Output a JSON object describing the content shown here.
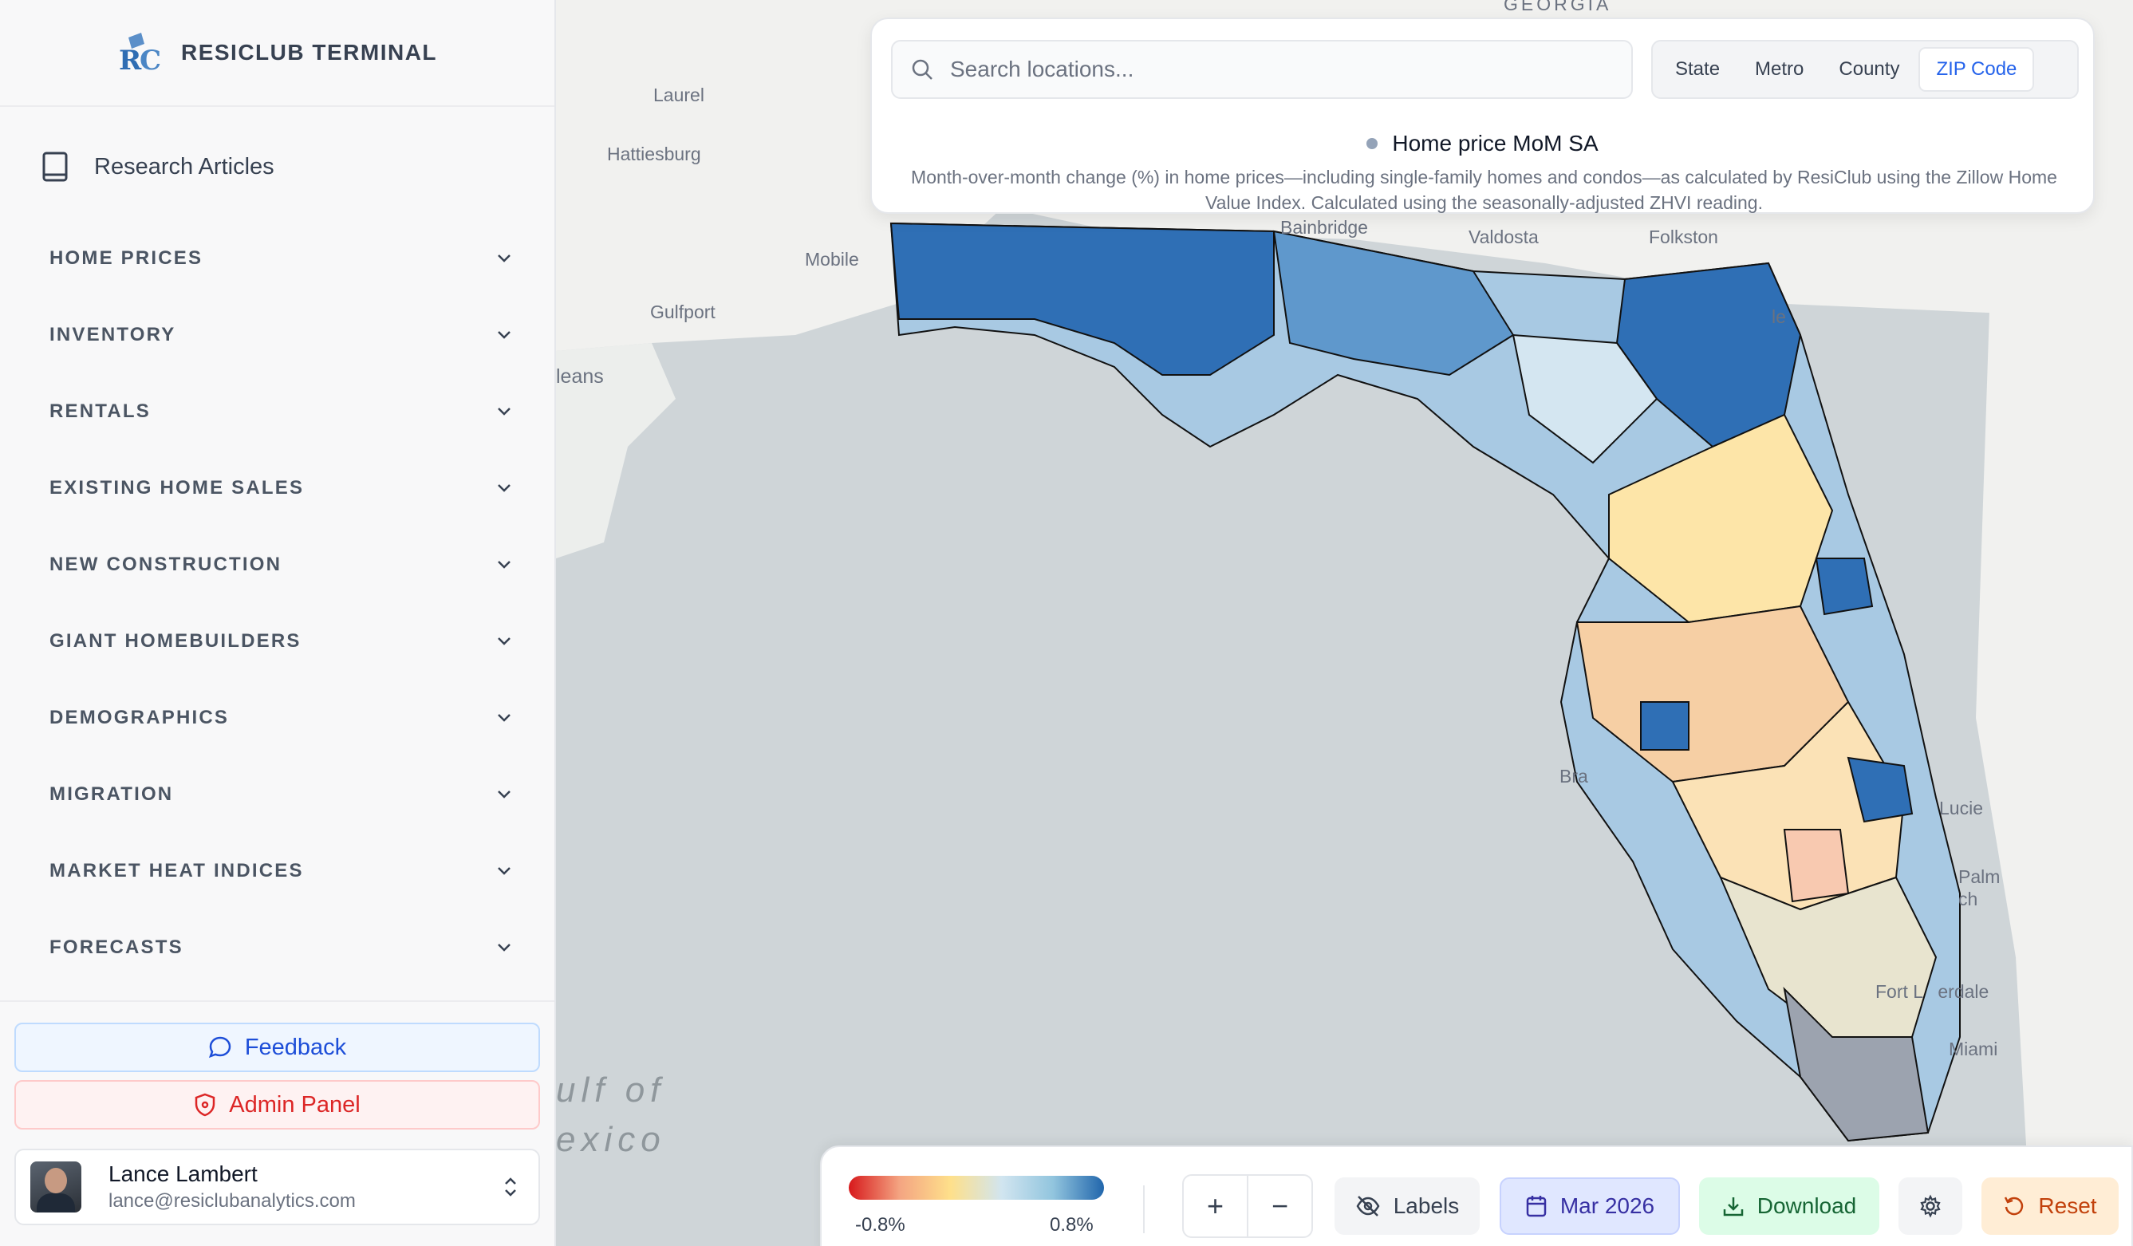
{
  "brand": {
    "name": "RESICLUB TERMINAL",
    "logo": "rc-logo-icon"
  },
  "sidebar": {
    "research_label": "Research Articles",
    "sections": [
      {
        "label": "HOME PRICES"
      },
      {
        "label": "INVENTORY"
      },
      {
        "label": "RENTALS"
      },
      {
        "label": "EXISTING HOME SALES"
      },
      {
        "label": "NEW CONSTRUCTION"
      },
      {
        "label": "GIANT HOMEBUILDERS"
      },
      {
        "label": "DEMOGRAPHICS"
      },
      {
        "label": "MIGRATION"
      },
      {
        "label": "MARKET HEAT INDICES"
      },
      {
        "label": "FORECASTS"
      }
    ],
    "feedback_label": "Feedback",
    "admin_label": "Admin Panel",
    "user": {
      "name": "Lance Lambert",
      "email": "lance@resiclubanalytics.com"
    }
  },
  "search": {
    "placeholder": "Search locations..."
  },
  "geo_levels": [
    {
      "label": "State"
    },
    {
      "label": "Metro"
    },
    {
      "label": "County"
    },
    {
      "label": "ZIP Code",
      "active": true
    }
  ],
  "metric": {
    "title": "Home price MoM SA",
    "description": "Month-over-month change (%) in home prices—including single-family homes and condos—as calculated by ResiClub using the Zillow Home Value Index. Calculated using the seasonally-adjusted ZHVI reading."
  },
  "map_labels": {
    "georgia": "GEORGIA",
    "laurel": "Laurel",
    "hattiesburg": "Hattiesburg",
    "mobile": "Mobile",
    "gulfport": "Gulfport",
    "new_orleans": "leans",
    "bainbridge": "Bainbridge",
    "valdosta": "Valdosta",
    "folkston": "Folkston",
    "jacksonville": "le",
    "port_st_lucie": "Lucie",
    "west_palm": "Palm",
    "west_palm_2": "ch",
    "fort_lauderdale": "Fort L   erdale",
    "miami": "Miami",
    "bradenton": "Bra",
    "gulf_line1": "ulf of",
    "gulf_line2": "exico"
  },
  "legend": {
    "min": "-0.8%",
    "max": "0.8%",
    "colors": [
      "#d7191c",
      "#f4a582",
      "#fee08b",
      "#d1e5f0",
      "#92c5de",
      "#2166ac"
    ]
  },
  "toolbar": {
    "zoom_in": "+",
    "zoom_out": "−",
    "labels": "Labels",
    "date": "Mar 2026",
    "download": "Download",
    "reset": "Reset"
  }
}
